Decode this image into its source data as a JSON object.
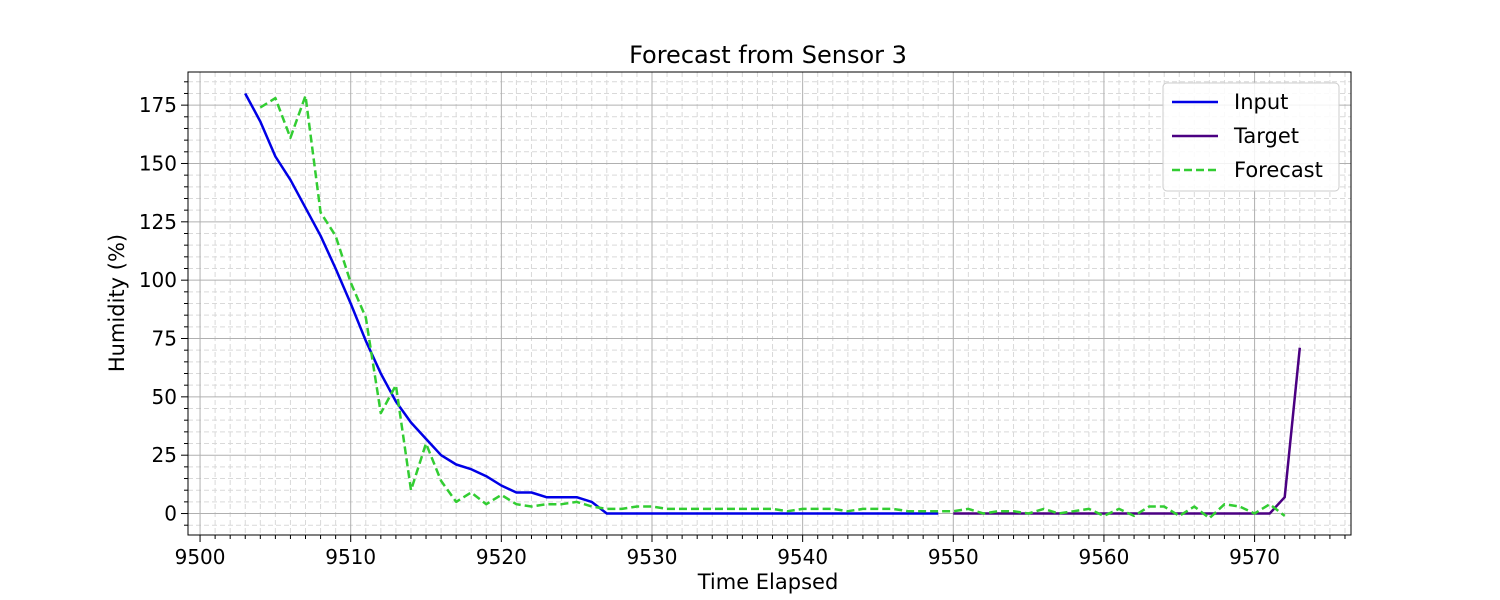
{
  "chart_data": {
    "type": "line",
    "title": "Forecast from Sensor 3",
    "xlabel": "Time Elapsed",
    "ylabel": "Humidity (%)",
    "xlim": [
      9499.2,
      9576.4
    ],
    "ylim": [
      -9.2,
      189.2
    ],
    "x_ticks": [
      9500,
      9510,
      9520,
      9530,
      9540,
      9550,
      9560,
      9570
    ],
    "y_ticks": [
      0,
      25,
      50,
      75,
      100,
      125,
      150,
      175
    ],
    "grid": true,
    "minor_grid": true,
    "legend_position": "top-right",
    "series": [
      {
        "name": "Input",
        "color": "#0000e6",
        "style": "solid",
        "x": [
          9503,
          9504,
          9505,
          9506,
          9507,
          9508,
          9509,
          9510,
          9511,
          9512,
          9513,
          9514,
          9515,
          9516,
          9517,
          9518,
          9519,
          9520,
          9521,
          9522,
          9523,
          9524,
          9525,
          9526,
          9527,
          9528,
          9529,
          9530,
          9531,
          9532,
          9533,
          9534,
          9535,
          9536,
          9537,
          9538,
          9539,
          9540,
          9541,
          9542,
          9543,
          9544,
          9545,
          9546,
          9547,
          9548,
          9549
        ],
        "y": [
          180,
          168,
          153,
          143,
          131,
          119,
          105,
          90,
          74,
          60,
          48,
          39,
          32,
          25,
          21,
          19,
          16,
          12,
          9,
          9,
          7,
          7,
          7,
          5,
          0,
          0,
          0,
          0,
          0,
          0,
          0,
          0,
          0,
          0,
          0,
          0,
          0,
          0,
          0,
          0,
          0,
          0,
          0,
          0,
          0,
          0,
          0
        ]
      },
      {
        "name": "Target",
        "color": "#4b0082",
        "style": "solid",
        "x": [
          9550,
          9551,
          9552,
          9553,
          9554,
          9555,
          9556,
          9557,
          9558,
          9559,
          9560,
          9561,
          9562,
          9563,
          9564,
          9565,
          9566,
          9567,
          9568,
          9569,
          9570,
          9571,
          9572,
          9573
        ],
        "y": [
          0,
          0,
          0,
          0,
          0,
          0,
          0,
          0,
          0,
          0,
          0,
          0,
          0,
          0,
          0,
          0,
          0,
          0,
          0,
          0,
          0,
          0,
          7,
          71
        ]
      },
      {
        "name": "Forecast",
        "color": "#32cd32",
        "style": "dashed",
        "x": [
          9504,
          9505,
          9506,
          9507,
          9508,
          9509,
          9510,
          9511,
          9512,
          9513,
          9514,
          9515,
          9516,
          9517,
          9518,
          9519,
          9520,
          9521,
          9522,
          9523,
          9524,
          9525,
          9526,
          9527,
          9528,
          9529,
          9530,
          9531,
          9532,
          9533,
          9534,
          9535,
          9536,
          9537,
          9538,
          9539,
          9540,
          9541,
          9542,
          9543,
          9544,
          9545,
          9546,
          9547,
          9548,
          9549,
          9550,
          9551,
          9552,
          9553,
          9554,
          9555,
          9556,
          9557,
          9558,
          9559,
          9560,
          9561,
          9562,
          9563,
          9564,
          9565,
          9566,
          9567,
          9568,
          9569,
          9570,
          9571,
          9572
        ],
        "y": [
          174,
          178,
          161,
          179,
          129,
          119,
          99,
          84,
          43,
          55,
          10,
          30,
          14,
          5,
          9,
          4,
          8,
          4,
          3,
          4,
          4,
          5,
          3,
          2,
          2,
          3,
          3,
          2,
          2,
          2,
          2,
          2,
          2,
          2,
          2,
          1,
          2,
          2,
          2,
          1,
          2,
          2,
          2,
          1,
          1,
          1,
          1,
          2,
          0,
          1,
          1,
          0,
          2,
          0,
          1,
          2,
          -1,
          2,
          -1,
          3,
          3,
          -1,
          3,
          -2,
          4,
          3,
          0,
          4,
          -1
        ]
      }
    ]
  }
}
